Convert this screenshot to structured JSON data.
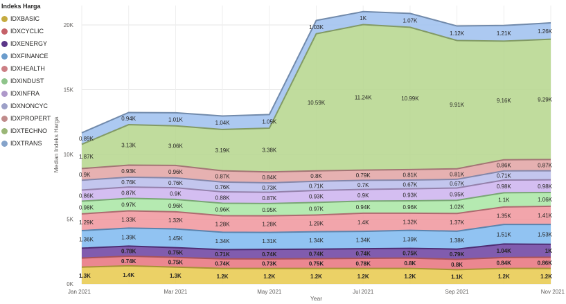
{
  "legend": {
    "title": "Indeks Harga"
  },
  "chart_data": {
    "type": "area",
    "stacked": true,
    "title": "",
    "xlabel": "Year",
    "ylabel": "Median Indeks Harga",
    "ylim": [
      0,
      21500
    ],
    "yticks": [
      0,
      5000,
      10000,
      15000,
      20000
    ],
    "ytick_labels": [
      "0K",
      "5K",
      "10K",
      "15K",
      "20K"
    ],
    "x": [
      "Jan 2021",
      "Feb 2021",
      "Mar 2021",
      "Apr 2021",
      "May 2021",
      "Jun 2021",
      "Jul 2021",
      "Aug 2021",
      "Sep 2021",
      "Oct 2021",
      "Nov 2021"
    ],
    "xtick_labels": [
      "Jan 2021",
      "Mar 2021",
      "May 2021",
      "Jul 2021",
      "Sep 2021",
      "Nov 2021"
    ],
    "grid": true,
    "legend_position": "left",
    "series": [
      {
        "name": "IDXBASIC",
        "color": "#E8C94B",
        "bold": true,
        "values": [
          1300,
          1400,
          1300,
          1200,
          1200,
          1200,
          1200,
          1200,
          1100,
          1200,
          1200
        ],
        "labels": [
          "1.3K",
          "1.4K",
          "1.3K",
          "1.2K",
          "1.2K",
          "1.2K",
          "1.2K",
          "1.2K",
          "1.1K",
          "1.2K",
          "1.2K"
        ]
      },
      {
        "name": "IDXCYCLIC",
        "color": "#E8727C",
        "bold": true,
        "values": [
          700,
          740,
          750,
          740,
          730,
          750,
          780,
          800,
          800,
          840,
          860
        ],
        "labels": [
          "",
          "0.74K",
          "0.75K",
          "0.74K",
          "0.73K",
          "0.75K",
          "0.78K",
          "0.8K",
          "0.8K",
          "0.84K",
          "0.86K"
        ]
      },
      {
        "name": "IDXENERGY",
        "color": "#6B3FA0",
        "bold": true,
        "values": [
          760,
          780,
          750,
          710,
          740,
          740,
          740,
          750,
          790,
          1040,
          1000
        ],
        "labels": [
          "",
          "0.78K",
          "0.75K",
          "0.71K",
          "0.74K",
          "0.74K",
          "0.74K",
          "0.75K",
          "0.79K",
          "1.04K",
          "1K"
        ]
      },
      {
        "name": "IDXFINANCE",
        "color": "#7EB8F0",
        "bold": false,
        "values": [
          1360,
          1390,
          1450,
          1340,
          1310,
          1340,
          1340,
          1390,
          1380,
          1510,
          1530
        ],
        "labels": [
          "1.36K",
          "1.39K",
          "1.45K",
          "1.34K",
          "1.31K",
          "1.34K",
          "1.34K",
          "1.39K",
          "1.38K",
          "1.51K",
          "1.53K"
        ]
      },
      {
        "name": "IDXHEALTH",
        "color": "#F0959C",
        "bold": false,
        "values": [
          1290,
          1330,
          1320,
          1280,
          1280,
          1290,
          1400,
          1320,
          1370,
          1350,
          1410
        ],
        "labels": [
          "1.29K",
          "1.33K",
          "1.32K",
          "1.28K",
          "1.28K",
          "1.29K",
          "1.4K",
          "1.32K",
          "1.37K",
          "1.35K",
          "1.41K"
        ]
      },
      {
        "name": "IDXINDUST",
        "color": "#A8E6A3",
        "bold": false,
        "values": [
          980,
          970,
          960,
          960,
          950,
          970,
          940,
          960,
          1020,
          1100,
          1060
        ],
        "labels": [
          "0.98K",
          "0.97K",
          "0.96K",
          "0.96K",
          "0.95K",
          "0.97K",
          "0.94K",
          "0.96K",
          "1.02K",
          "1.1K",
          "1.06K"
        ]
      },
      {
        "name": "IDXINFRA",
        "color": "#CDB3EE",
        "bold": false,
        "values": [
          860,
          870,
          900,
          880,
          870,
          930,
          900,
          930,
          950,
          980,
          980
        ],
        "labels": [
          "0.86K",
          "0.87K",
          "0.9K",
          "0.88K",
          "0.87K",
          "0.93K",
          "0.9K",
          "0.93K",
          "0.95K",
          "0.98K",
          "0.98K"
        ]
      },
      {
        "name": "IDXNONCYC",
        "color": "#B9BCEB",
        "bold": false,
        "values": [
          760,
          760,
          760,
          760,
          730,
          710,
          700,
          670,
          670,
          710,
          700
        ],
        "labels": [
          "",
          "0.76K",
          "0.76K",
          "0.76K",
          "0.73K",
          "0.71K",
          "0.7K",
          "0.67K",
          "0.67K",
          "0.71K",
          ""
        ]
      },
      {
        "name": "IDXPROPERT",
        "color": "#E2A3A3",
        "bold": false,
        "values": [
          900,
          930,
          960,
          870,
          840,
          800,
          790,
          810,
          810,
          860,
          870
        ],
        "labels": [
          "0.9K",
          "0.93K",
          "0.96K",
          "0.87K",
          "0.84K",
          "0.8K",
          "0.79K",
          "0.81K",
          "0.81K",
          "0.86K",
          "0.87K"
        ]
      },
      {
        "name": "IDXTECHNO",
        "color": "#B5D68C",
        "bold": false,
        "values": [
          1870,
          3130,
          3060,
          3190,
          3380,
          10590,
          11240,
          10990,
          9910,
          9160,
          9290
        ],
        "labels": [
          "1.87K",
          "3.13K",
          "3.06K",
          "3.19K",
          "3.38K",
          "10.59K",
          "11.24K",
          "10.99K",
          "9.91K",
          "9.16K",
          "9.29K"
        ]
      },
      {
        "name": "IDXTRANS",
        "color": "#9DC0EE",
        "bold": false,
        "values": [
          890,
          940,
          1010,
          1040,
          1050,
          1030,
          1000,
          1070,
          1120,
          1210,
          1260
        ],
        "labels": [
          "0.89K",
          "0.94K",
          "1.01K",
          "1.04K",
          "1.05K",
          "1.03K",
          "1K",
          "1.07K",
          "1.12K",
          "1.21K",
          "1.26K"
        ]
      }
    ]
  }
}
